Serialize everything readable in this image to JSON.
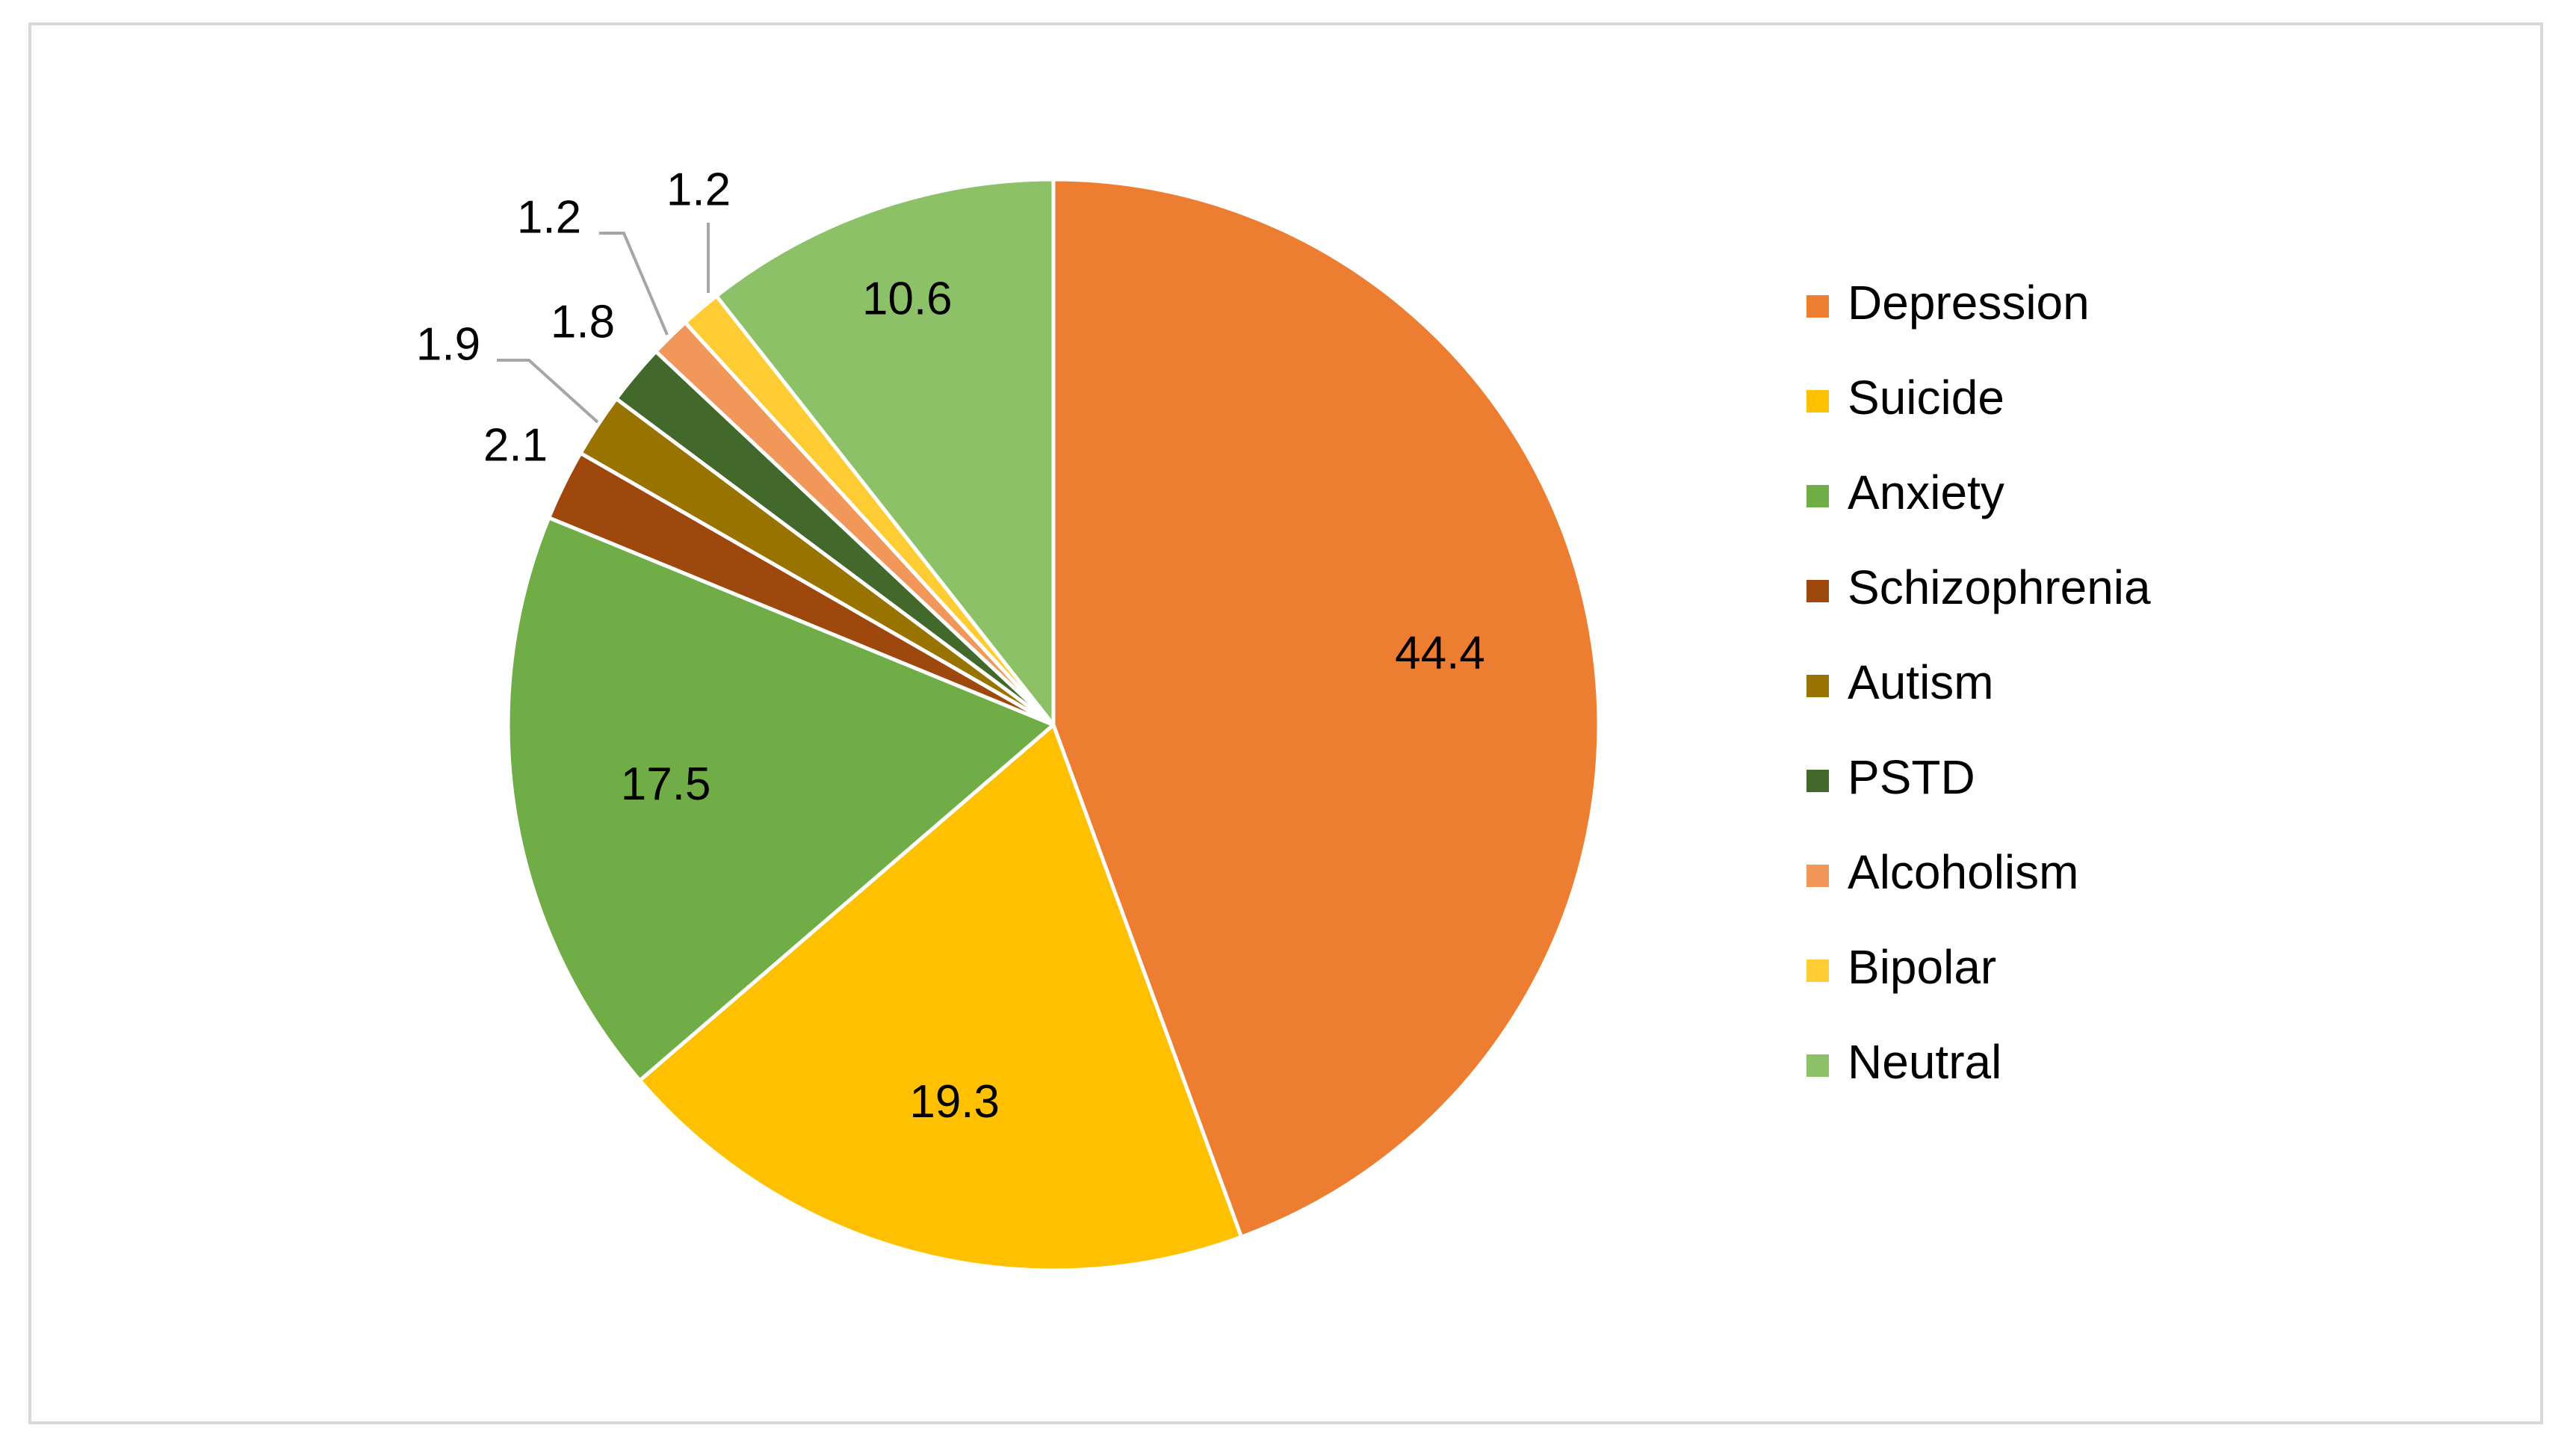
{
  "chart_data": {
    "type": "pie",
    "title": "",
    "categories": [
      "Depression",
      "Suicide",
      "Anxiety",
      "Schizophrenia",
      "Autism",
      "PSTD",
      "Alcoholism",
      "Bipolar",
      "Neutral"
    ],
    "values": [
      44.4,
      19.3,
      17.5,
      2.1,
      1.9,
      1.8,
      1.2,
      1.2,
      10.6
    ],
    "data_labels": [
      "44.4",
      "19.3",
      "17.5",
      "2.1",
      "1.9",
      "1.8",
      "1.2",
      "1.2",
      "10.6"
    ],
    "colors": [
      "#ED7D31",
      "#FFC000",
      "#70AD47",
      "#9E480E",
      "#997300",
      "#43682B",
      "#F1975A",
      "#FFCD33",
      "#8CC168"
    ],
    "legend_position": "right",
    "start_angle": "12 o'clock, clockwise"
  }
}
